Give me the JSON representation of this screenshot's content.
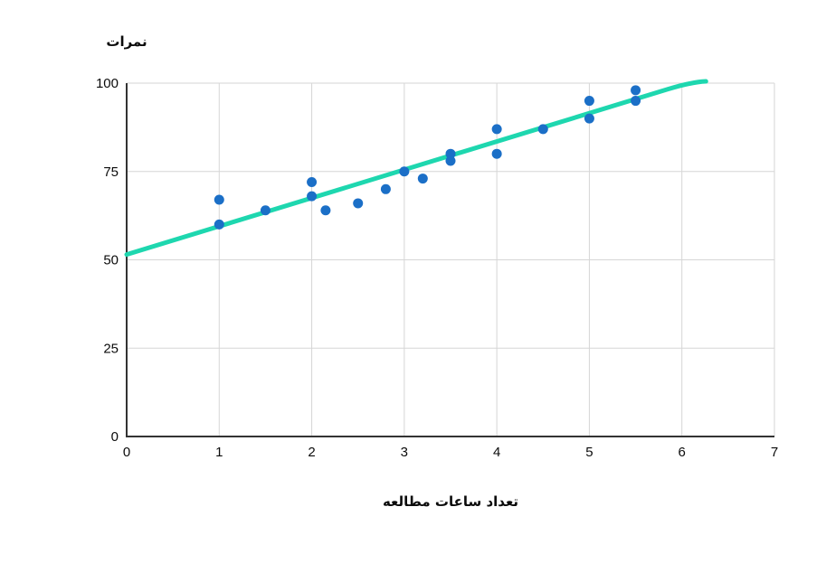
{
  "page": {
    "background_color": "#ffffff"
  },
  "chart_data": {
    "type": "scatter",
    "title": "",
    "xlabel": "تعداد ساعات مطالعه",
    "ylabel": "نمرات",
    "xlim": [
      0,
      7
    ],
    "ylim": [
      0,
      100
    ],
    "x_ticks": [
      0,
      1,
      2,
      3,
      4,
      5,
      6,
      7
    ],
    "y_ticks": [
      0,
      25,
      50,
      75,
      100
    ],
    "grid": true,
    "legend": "none",
    "series": [
      {
        "name": "scores-points",
        "type": "scatter",
        "color": "#1b6fc7",
        "point_radius": 5.5,
        "points": [
          [
            1,
            60
          ],
          [
            1,
            67
          ],
          [
            1.5,
            64
          ],
          [
            2,
            68
          ],
          [
            2,
            72
          ],
          [
            2.15,
            64
          ],
          [
            2.5,
            66
          ],
          [
            2.8,
            70
          ],
          [
            3,
            75
          ],
          [
            3.2,
            73
          ],
          [
            3.5,
            78
          ],
          [
            3.5,
            80
          ],
          [
            4,
            80
          ],
          [
            4,
            87
          ],
          [
            4.5,
            87
          ],
          [
            5,
            90
          ],
          [
            5,
            95
          ],
          [
            5.5,
            95
          ],
          [
            5.5,
            98
          ]
        ]
      },
      {
        "name": "trend-line",
        "type": "line",
        "color": "#1ed7af",
        "stroke_width": 5,
        "points_straight": [
          [
            0,
            51.5
          ],
          [
            5.85,
            98.3
          ]
        ],
        "curve_control": [
          6.1,
          100.3
        ],
        "end": [
          6.26,
          100.5
        ]
      }
    ],
    "style": {
      "grid_color": "#d6d6d6",
      "axis_color": "#333333",
      "tick_label_color": "#0b0b0b",
      "tick_font_size": 15
    }
  }
}
